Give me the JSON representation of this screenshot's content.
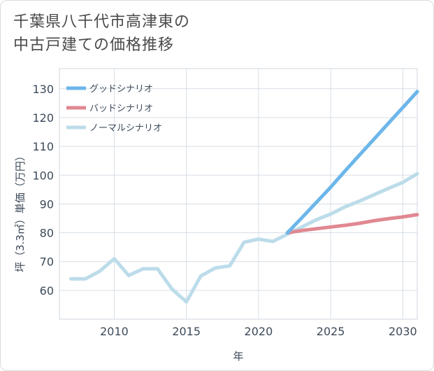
{
  "title_line1": "千葉県八千代市高津東の",
  "title_line2": "中古戸建ての価格推移",
  "chart_data": {
    "type": "line",
    "title": "千葉県八千代市高津東の中古戸建ての価格推移",
    "xlabel": "年",
    "ylabel": "坪（3.3㎡）単価（万円）",
    "xlim": [
      2006.2,
      2031
    ],
    "ylim": [
      50,
      137
    ],
    "xticks": [
      2010,
      2015,
      2020,
      2025,
      2030
    ],
    "yticks": [
      60,
      70,
      80,
      90,
      100,
      110,
      120,
      130
    ],
    "grid": true,
    "legend_position": "top-left",
    "series": [
      {
        "name": "グッドシナリオ",
        "color": "#6cb6ea",
        "x": [
          2022,
          2023,
          2024,
          2025,
          2026,
          2027,
          2028,
          2029,
          2030,
          2031
        ],
        "y": [
          80,
          85.2,
          90.5,
          95.8,
          101.5,
          107,
          112.5,
          118,
          123.5,
          129
        ]
      },
      {
        "name": "バッドシナリオ",
        "color": "#e08891",
        "x": [
          2022,
          2023,
          2024,
          2025,
          2026,
          2027,
          2028,
          2029,
          2030,
          2031
        ],
        "y": [
          80,
          80.8,
          81.4,
          82,
          82.6,
          83.3,
          84.2,
          84.9,
          85.5,
          86.3
        ]
      },
      {
        "name": "ノーマルシナリオ",
        "color": "#bcdcea",
        "x": [
          2007,
          2008,
          2009,
          2010,
          2011,
          2012,
          2013,
          2014,
          2015,
          2016,
          2017,
          2018,
          2019,
          2020,
          2021,
          2022,
          2023,
          2024,
          2025,
          2026,
          2027,
          2028,
          2029,
          2030,
          2031
        ],
        "y": [
          64,
          64,
          66.7,
          71,
          65.2,
          67.5,
          67.5,
          60.5,
          56,
          65,
          67.8,
          68.5,
          76.7,
          77.8,
          77,
          79.5,
          82,
          84.5,
          86.5,
          89,
          91,
          93.2,
          95.4,
          97.5,
          100.5
        ]
      }
    ]
  }
}
